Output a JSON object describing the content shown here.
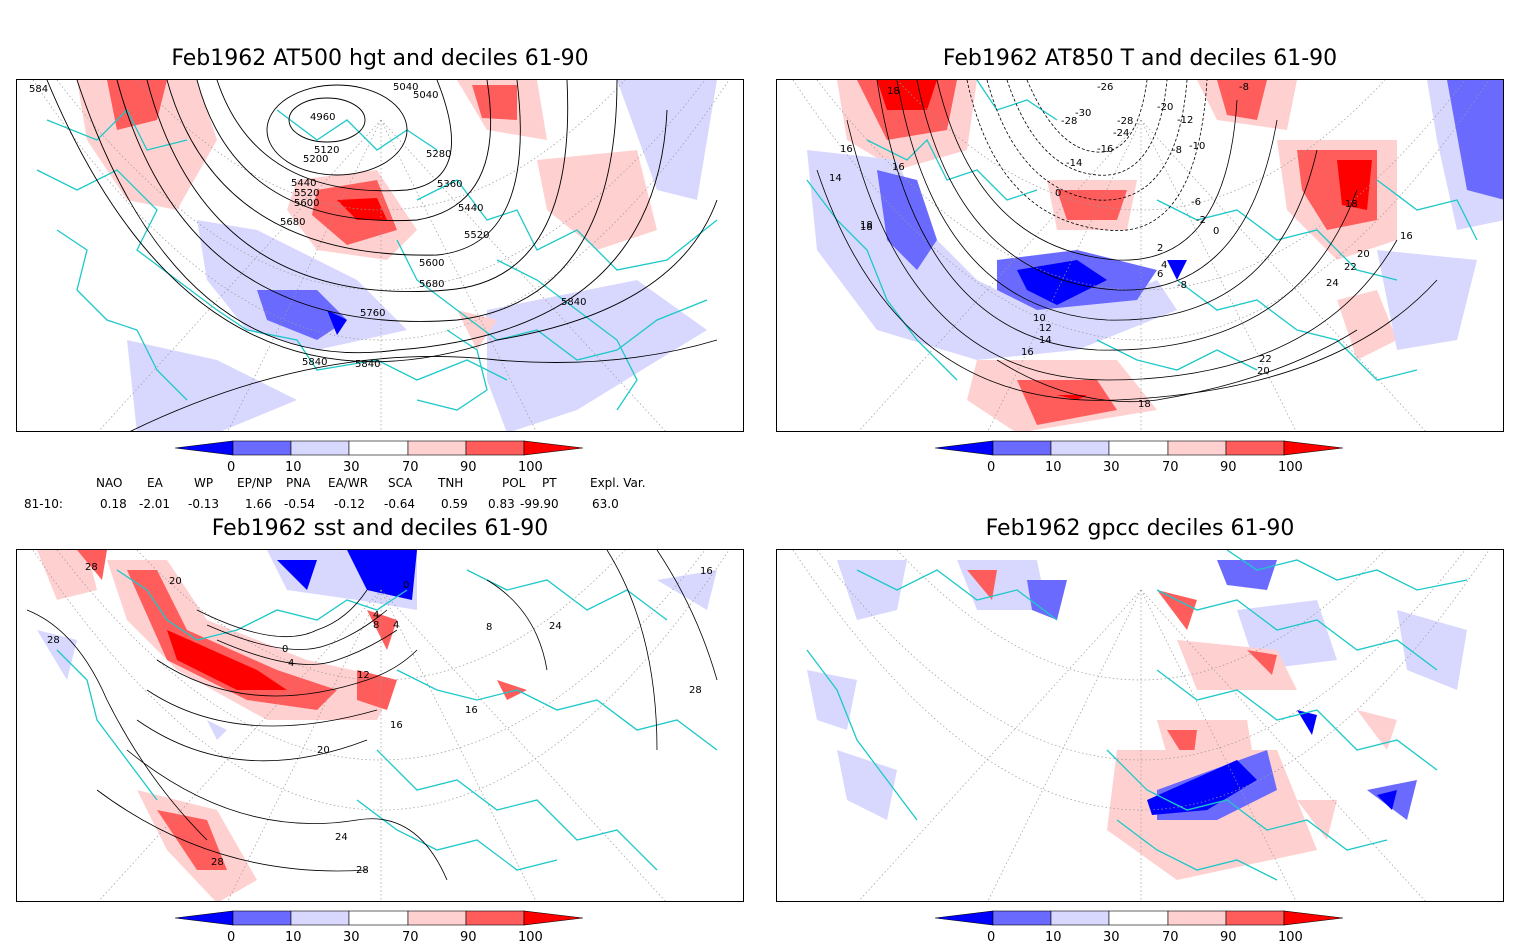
{
  "panels": {
    "p1": {
      "title": "Feb1962 AT500 hgt and deciles 61-90",
      "contour_labels": [
        "4960",
        "5040",
        "5040",
        "5120",
        "5200",
        "5280",
        "5360",
        "5440",
        "5520",
        "5600",
        "5680",
        "5440",
        "5520",
        "5600",
        "5680",
        "5760",
        "5840",
        "5840",
        "5840",
        "584"
      ]
    },
    "p2": {
      "title": "Feb1962 AT850 T and deciles 61-90",
      "contour_labels": [
        "18",
        "16",
        "16",
        "14",
        "18",
        "-26",
        "-30",
        "-28",
        "-28",
        "-20",
        "-24",
        "-16",
        "-14",
        "-12",
        "-10",
        "-8",
        "-8",
        "-6",
        "-2",
        "0",
        "0",
        "2",
        "4",
        "6",
        "-8",
        "10",
        "12",
        "14",
        "16",
        "18",
        "20",
        "22",
        "22",
        "20",
        "24",
        "18",
        "16",
        "18"
      ]
    },
    "p3": {
      "title": "Feb1962 sst and deciles 61-90",
      "contour_labels": [
        "28",
        "28",
        "20",
        "0",
        "4",
        "8",
        "4",
        "12",
        "16",
        "16",
        "20",
        "24",
        "28",
        "28",
        "24",
        "28",
        "0",
        "4",
        "8",
        "16"
      ]
    },
    "p4": {
      "title": "Feb1962 gpcc deciles 61-90"
    }
  },
  "colorbar": {
    "labels": [
      "0",
      "10",
      "30",
      "70",
      "90",
      "100"
    ],
    "colors": [
      "#0000ff",
      "#6a6aff",
      "#d8d8ff",
      "#ffffff",
      "#ffd0d0",
      "#ff5c5c",
      "#ff0000"
    ]
  },
  "indices": {
    "headers": [
      "NAO",
      "EA",
      "WP",
      "EP/NP",
      "PNA",
      "EA/WR",
      "SCA",
      "TNH",
      "POL",
      "PT",
      "Expl. Var."
    ],
    "row_label": "81-10:",
    "values": [
      "0.18",
      "-2.01",
      "-0.13",
      "1.66",
      "-0.54",
      "-0.12",
      "-0.64",
      "0.59",
      "0.83",
      "-99.90",
      "63.0"
    ]
  }
}
